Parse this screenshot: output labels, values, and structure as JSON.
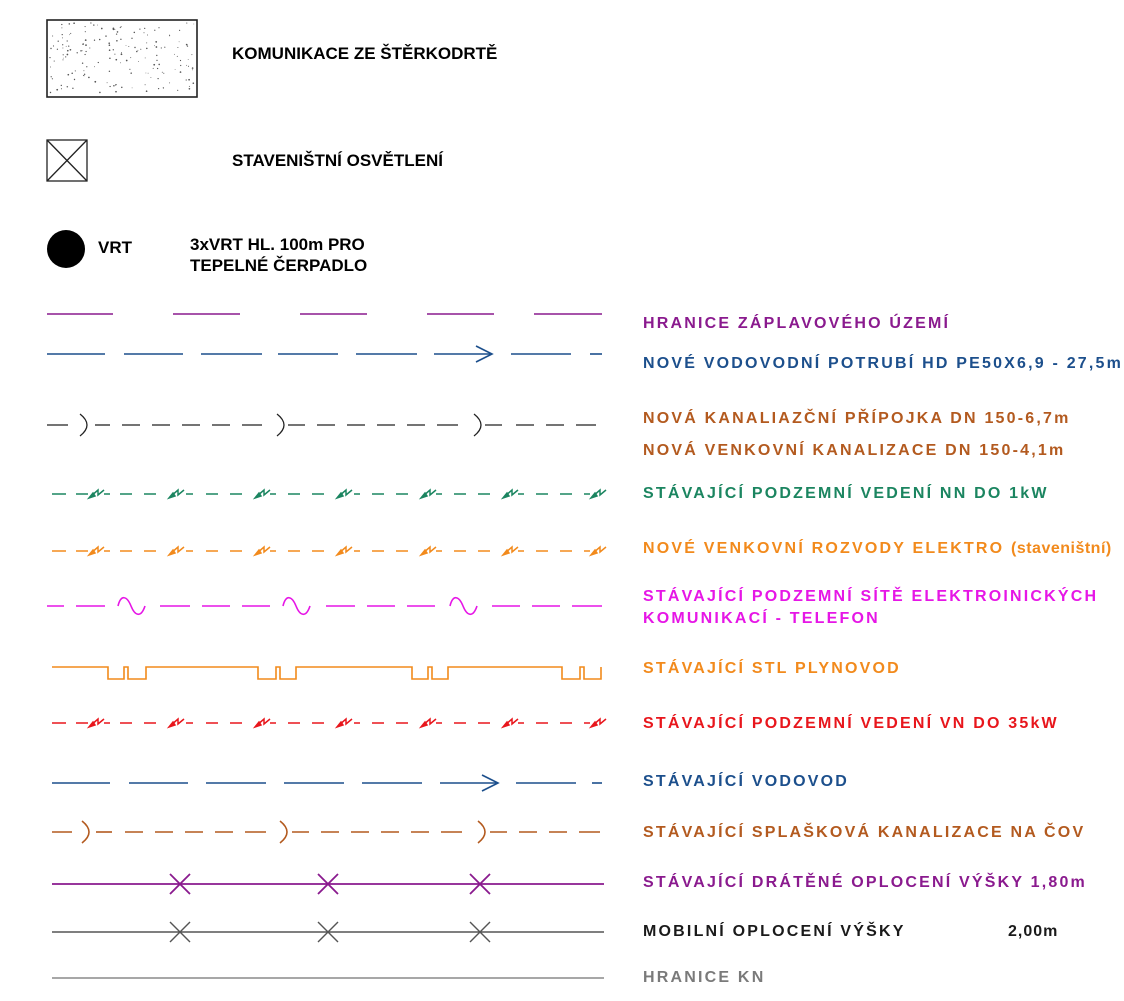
{
  "symbols": {
    "gravel": {
      "label": "KOMUNIKACE ZE ŠTĚRKODRTĚ"
    },
    "lighting": {
      "label": "STAVENIŠTNÍ OSVĚTLENÍ"
    },
    "borehole": {
      "symbol_label": "VRT",
      "desc_line1": "3xVRT HL. 100m PRO",
      "desc_line2": "TEPELNÉ ČERPADLO"
    }
  },
  "legend": [
    {
      "id": "floodplain",
      "label": "HRANICE ZÁPLAVOVÉHO ÚZEMÍ",
      "color": "#8a1a8e",
      "style": "long-dash"
    },
    {
      "id": "new-water",
      "label": "NOVÉ VODOVODNÍ POTRUBÍ HD PE50X6,9 - 27,5m",
      "color": "#1c4f8c",
      "style": "dash-arrow"
    },
    {
      "id": "new-sewer-connection",
      "label": "NOVÁ KANALIAZČNÍ PŘÍPOJKA DN 150-6,7m",
      "color": "#b35a1f",
      "style": "dash-bracket"
    },
    {
      "id": "new-outdoor-sewer",
      "label": "NOVÁ VENKOVNÍ KANALIZACE DN 150-4,1m",
      "color": "#b35a1f",
      "style": "none"
    },
    {
      "id": "lv-cable",
      "label": "STÁVAJÍCÍ PODZEMNÍ VEDENÍ NN DO 1kW",
      "color": "#1b8560",
      "style": "dash-bolt"
    },
    {
      "id": "new-electro",
      "label": "NOVÉ VENKOVNÍ ROZVODY ELEKTRO",
      "label_suffix": "(staveništní)",
      "color": "#f28a1c",
      "style": "dash-bolt"
    },
    {
      "id": "telecom",
      "label": "STÁVAJÍCÍ PODZEMNÍ SÍTĚ ELEKTROINICKÝCH",
      "label2": "KOMUNIKACÍ - TELEFON",
      "color": "#e616e6",
      "style": "dash-wave"
    },
    {
      "id": "gas",
      "label": "STÁVAJÍCÍ STL PLYNOVOD",
      "color": "#f28a1c",
      "style": "notched"
    },
    {
      "id": "hv-cable",
      "label": "STÁVAJÍCÍ PODZEMNÍ VEDENÍ VN DO 35kW",
      "color": "#e8161c",
      "style": "dash-bolt"
    },
    {
      "id": "water-main",
      "label": "STÁVAJÍCÍ VODOVOD",
      "color": "#1c4f8c",
      "style": "dash-arrow"
    },
    {
      "id": "sewer",
      "label": "STÁVAJÍCÍ SPLAŠKOVÁ KANALIZACE NA ČOV",
      "color": "#b35a1f",
      "style": "dash-bracket"
    },
    {
      "id": "wire-fence",
      "label": "STÁVAJÍCÍ DRÁTĚNÉ OPLOCENÍ VÝŠKY 1,80m",
      "color": "#8a1a8e",
      "style": "cross"
    },
    {
      "id": "mobile-fence",
      "label": "MOBILNÍ OPLOCENÍ VÝŠKY",
      "label_value": "2,00m",
      "color": "#1a1a1a",
      "style": "cross"
    },
    {
      "id": "cadastre",
      "label": "HRANICE KN",
      "color": "#7a7a7a",
      "style": "solid"
    }
  ]
}
